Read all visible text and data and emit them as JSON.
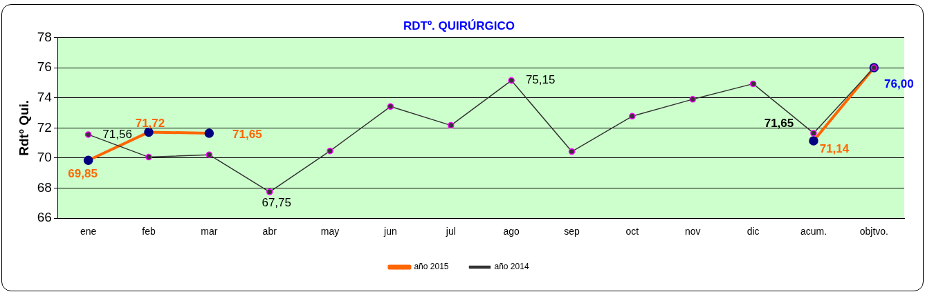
{
  "chart_data": {
    "type": "line",
    "title": "RDTº. QUIRÚRGICO",
    "ylabel": "Rdtº Qui.",
    "categories": [
      "ene",
      "feb",
      "mar",
      "abr",
      "may",
      "jun",
      "jul",
      "ago",
      "sep",
      "oct",
      "nov",
      "dic",
      "acum.",
      "objtvo."
    ],
    "series": [
      {
        "name": "año 2015",
        "color": "#ff6600",
        "values": [
          69.85,
          71.72,
          71.65,
          null,
          null,
          null,
          null,
          null,
          null,
          null,
          null,
          null,
          71.14,
          76.0
        ],
        "value_labels": [
          "69,85",
          "71,72",
          "71,65",
          null,
          null,
          null,
          null,
          null,
          null,
          null,
          null,
          null,
          "71,14",
          null
        ]
      },
      {
        "name": "año 2014",
        "color": "#333333",
        "values": [
          71.56,
          70.06,
          70.22,
          67.75,
          70.47,
          73.42,
          72.17,
          75.15,
          70.43,
          72.78,
          73.9,
          74.93,
          71.65,
          76.0
        ],
        "value_labels": [
          "71,56",
          null,
          null,
          "67,75",
          null,
          null,
          null,
          "75,15",
          null,
          null,
          null,
          null,
          "71,65",
          null
        ]
      }
    ],
    "annotations": [
      {
        "text": "76,00",
        "x": "objtvo.",
        "y": 76.0
      }
    ],
    "ylim": [
      66,
      78
    ],
    "yticks": [
      66,
      68,
      70,
      72,
      74,
      76,
      78
    ],
    "grid": "y",
    "legend": "bottom",
    "marker": "circle",
    "line_style": "solid"
  }
}
